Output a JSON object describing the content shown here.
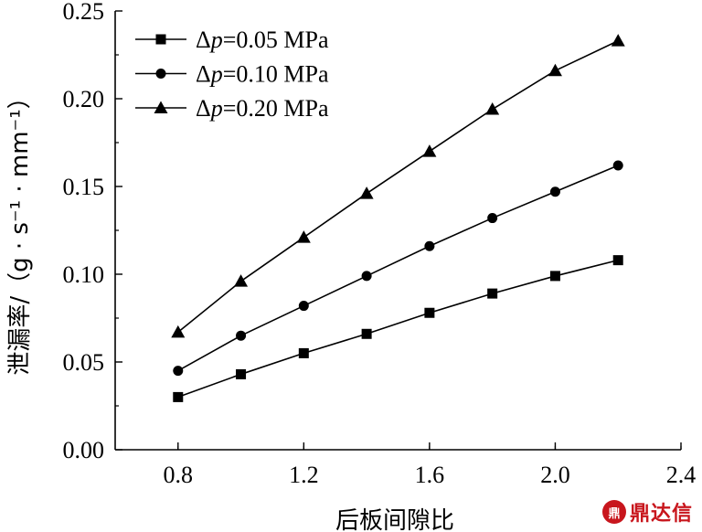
{
  "chart_data": {
    "type": "line",
    "x": [
      0.8,
      1.0,
      1.2,
      1.4,
      1.6,
      1.8,
      2.0,
      2.2
    ],
    "series": [
      {
        "name": "Δp=0.05 MPa",
        "marker": "square",
        "values": [
          0.03,
          0.043,
          0.055,
          0.066,
          0.078,
          0.089,
          0.099,
          0.108
        ]
      },
      {
        "name": "Δp=0.10 MPa",
        "marker": "circle",
        "values": [
          0.045,
          0.065,
          0.082,
          0.099,
          0.116,
          0.132,
          0.147,
          0.162
        ]
      },
      {
        "name": "Δp=0.20 MPa",
        "marker": "triangle",
        "values": [
          0.067,
          0.096,
          0.121,
          0.146,
          0.17,
          0.194,
          0.216,
          0.233
        ]
      }
    ],
    "legend_labels": [
      {
        "prefix": "Δ",
        "var": "p",
        "rest": "=0.05 MPa"
      },
      {
        "prefix": "Δ",
        "var": "p",
        "rest": "=0.10 MPa"
      },
      {
        "prefix": "Δ",
        "var": "p",
        "rest": "=0.20 MPa"
      }
    ],
    "xlabel": "后板间隙比",
    "ylabel": "泄漏率/（g · s⁻¹ · mm⁻¹）",
    "xlim": [
      0.6,
      2.4
    ],
    "ylim": [
      0.0,
      0.25
    ],
    "xticks": [
      "0.8",
      "1.2",
      "1.6",
      "2.0",
      "2.4"
    ],
    "xtick_values": [
      0.8,
      1.2,
      1.6,
      2.0,
      2.4
    ],
    "yticks": [
      "0.00",
      "0.05",
      "0.10",
      "0.15",
      "0.20",
      "0.25"
    ],
    "ytick_values": [
      0.0,
      0.05,
      0.1,
      0.15,
      0.2,
      0.25
    ],
    "legend_position": "top-left",
    "grid": false,
    "line_color": "#000000"
  },
  "watermark": {
    "logo": "鼎",
    "text": "鼎达信"
  }
}
